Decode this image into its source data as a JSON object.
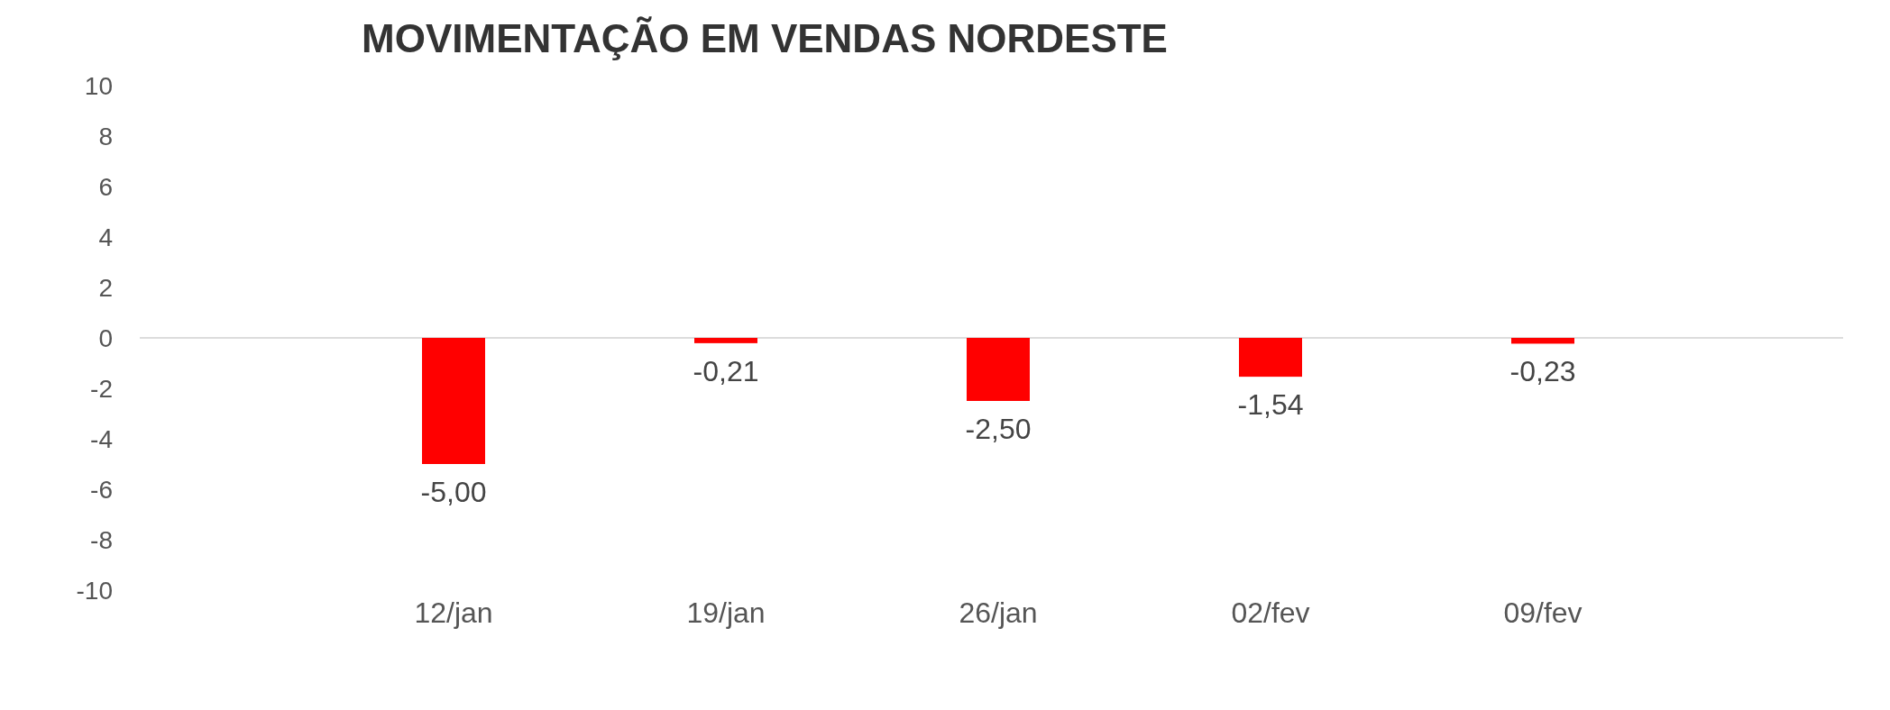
{
  "chart_data": {
    "type": "bar",
    "title": "MOVIMENTAÇÃO EM VENDAS NORDESTE",
    "categories": [
      "12/jan",
      "19/jan",
      "26/jan",
      "02/fev",
      "09/fev"
    ],
    "values": [
      -5.0,
      -0.21,
      -2.5,
      -1.54,
      -0.23
    ],
    "value_labels": [
      "-5,00",
      "-0,21",
      "-2,50",
      "-1,54",
      "-0,23"
    ],
    "color": "#ff0000",
    "ylim": [
      -10,
      10
    ],
    "yticks": [
      -10,
      -8,
      -6,
      -4,
      -2,
      0,
      2,
      4,
      6,
      8,
      10
    ]
  }
}
